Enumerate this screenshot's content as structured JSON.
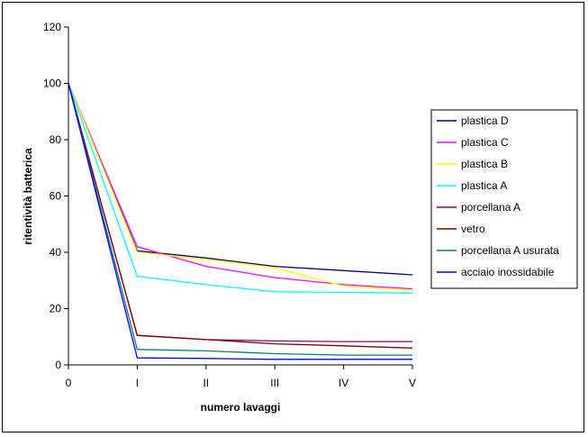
{
  "chart_data": {
    "type": "line",
    "title": "",
    "xlabel": "numero lavaggi",
    "ylabel": "ritentività batterica",
    "categories": [
      "0",
      "I",
      "II",
      "III",
      "IV",
      "V"
    ],
    "ylim": [
      0,
      120
    ],
    "yticks": [
      0,
      20,
      40,
      60,
      80,
      100,
      120
    ],
    "grid": false,
    "legend_position": "right",
    "series": [
      {
        "name": "plastica D",
        "color": "#000080",
        "values": [
          100,
          40.5,
          38,
          35,
          33.5,
          32
        ]
      },
      {
        "name": "plastica C",
        "color": "#ff00ff",
        "values": [
          100,
          42,
          35,
          31,
          28.5,
          27
        ]
      },
      {
        "name": "plastica B",
        "color": "#ffff00",
        "values": [
          100,
          40,
          37.5,
          34.5,
          28,
          26.5
        ]
      },
      {
        "name": "plastica A",
        "color": "#00ffff",
        "values": [
          100,
          31.5,
          28.5,
          26,
          25.8,
          25.5
        ]
      },
      {
        "name": "porcellana A",
        "color": "#800080",
        "values": [
          100,
          10.5,
          9,
          8.5,
          8.3,
          8.3
        ]
      },
      {
        "name": "vetro",
        "color": "#800000",
        "values": [
          100,
          10.5,
          9,
          7.5,
          6.8,
          6
        ]
      },
      {
        "name": "porcellana A usurata",
        "color": "#008080",
        "values": [
          100,
          5.5,
          5,
          4,
          3.5,
          3.5
        ]
      },
      {
        "name": "acciaio inossidabile",
        "color": "#0000ff",
        "values": [
          100,
          2.5,
          2.3,
          2,
          2,
          2
        ]
      }
    ]
  }
}
